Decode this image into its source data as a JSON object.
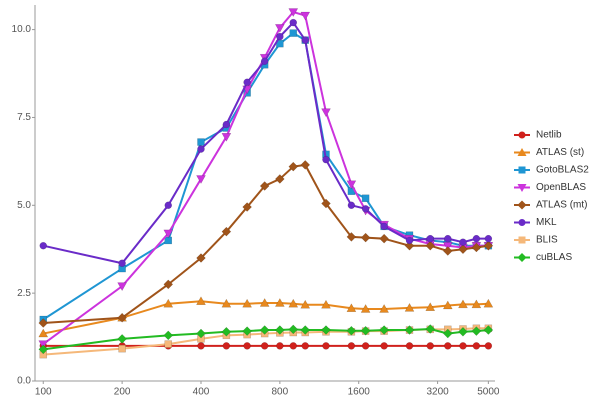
{
  "chart_data": {
    "type": "line",
    "xscale": "log",
    "grid": false,
    "legend": "right",
    "x": [
      100,
      200,
      300,
      400,
      500,
      600,
      700,
      800,
      900,
      1000,
      1200,
      1500,
      1700,
      2000,
      2500,
      3000,
      3500,
      4000,
      4500,
      5000
    ],
    "xlim": [
      93,
      5300
    ],
    "xticks": [
      100,
      200,
      400,
      800,
      1600,
      3200,
      5000
    ],
    "ylim": [
      0,
      10.7
    ],
    "yticks": [
      {
        "value": 0,
        "label": "0.0"
      },
      {
        "value": 2.5,
        "label": "2.5"
      },
      {
        "value": 5,
        "label": "5.0"
      },
      {
        "value": 7.5,
        "label": "7.5"
      },
      {
        "value": 10,
        "label": "10.0"
      }
    ],
    "series": [
      {
        "name": "Netlib",
        "color": "#d0211c",
        "marker": "circle",
        "values": [
          1.0,
          1.0,
          1.0,
          1.0,
          1.0,
          1.0,
          1.0,
          1.0,
          1.0,
          1.0,
          1.0,
          1.0,
          1.0,
          1.0,
          1.0,
          1.0,
          1.0,
          1.0,
          1.0,
          1.0
        ]
      },
      {
        "name": "ATLAS (st)",
        "color": "#e8891e",
        "marker": "triangle-up",
        "values": [
          1.35,
          1.8,
          2.2,
          2.27,
          2.2,
          2.2,
          2.22,
          2.22,
          2.2,
          2.17,
          2.17,
          2.07,
          2.05,
          2.05,
          2.08,
          2.1,
          2.15,
          2.18,
          2.18,
          2.2
        ]
      },
      {
        "name": "GotoBLAS2",
        "color": "#1f96d3",
        "marker": "square",
        "values": [
          1.75,
          3.2,
          4.0,
          6.8,
          7.2,
          8.2,
          9.0,
          9.6,
          9.9,
          9.7,
          6.45,
          5.4,
          5.2,
          4.4,
          4.15,
          4.0,
          3.95,
          3.85,
          3.85,
          3.85
        ]
      },
      {
        "name": "OpenBLAS",
        "color": "#cc33dd",
        "marker": "triangle-down",
        "values": [
          1.05,
          2.7,
          4.2,
          5.75,
          6.95,
          8.3,
          9.2,
          10.05,
          10.5,
          10.4,
          7.65,
          5.6,
          4.85,
          4.45,
          4.05,
          3.9,
          3.85,
          3.8,
          3.85,
          3.85
        ]
      },
      {
        "name": "ATLAS (mt)",
        "color": "#a0541a",
        "marker": "diamond",
        "values": [
          1.65,
          1.8,
          2.75,
          3.5,
          4.25,
          4.95,
          5.55,
          5.75,
          6.1,
          6.15,
          5.05,
          4.1,
          4.08,
          4.05,
          3.85,
          3.85,
          3.7,
          3.75,
          3.8,
          3.85
        ]
      },
      {
        "name": "MKL",
        "color": "#6a2bc8",
        "marker": "circle",
        "values": [
          3.85,
          3.35,
          5.0,
          6.6,
          7.3,
          8.5,
          9.1,
          9.8,
          10.2,
          9.7,
          6.3,
          5.0,
          4.9,
          4.4,
          4.0,
          4.05,
          4.05,
          3.95,
          4.05,
          4.05
        ]
      },
      {
        "name": "BLIS",
        "color": "#f5b87a",
        "marker": "square",
        "values": [
          0.75,
          0.92,
          1.05,
          1.2,
          1.3,
          1.32,
          1.35,
          1.37,
          1.38,
          1.38,
          1.4,
          1.4,
          1.42,
          1.42,
          1.45,
          1.47,
          1.47,
          1.48,
          1.5,
          1.5
        ]
      },
      {
        "name": "cuBLAS",
        "color": "#22bb22",
        "marker": "diamond",
        "values": [
          0.9,
          1.2,
          1.3,
          1.35,
          1.4,
          1.42,
          1.45,
          1.45,
          1.47,
          1.45,
          1.45,
          1.43,
          1.43,
          1.45,
          1.45,
          1.48,
          1.35,
          1.4,
          1.42,
          1.45
        ]
      }
    ]
  }
}
